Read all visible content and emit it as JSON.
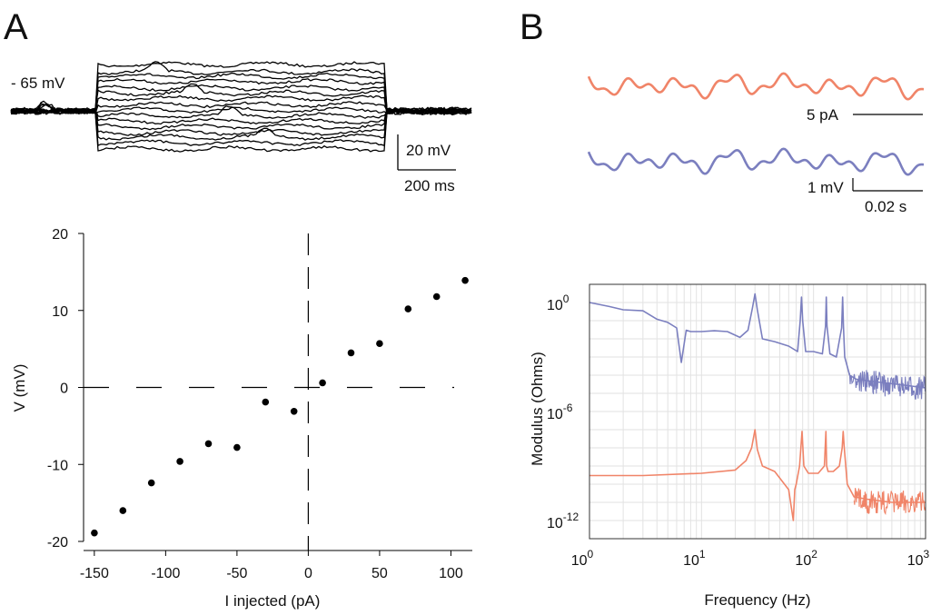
{
  "panels": {
    "a_letter": "A",
    "b_letter": "B"
  },
  "traces_a": {
    "baseline_label": "- 65 mV",
    "scale_v_label": "20 mV",
    "scale_t_label": "200 ms",
    "color": "#000000"
  },
  "traces_b": {
    "current_scale_label": "5 pA",
    "voltage_scale_label": "1 mV",
    "time_scale_label": "0.02 s",
    "current_color": "#f08468",
    "voltage_color": "#7b7fbf"
  },
  "chart_data": [
    {
      "type": "scatter",
      "title": "",
      "xlabel": "I injected (pA)",
      "ylabel": "V (mV)",
      "xlim": [
        -155,
        115
      ],
      "ylim": [
        -20,
        20
      ],
      "xticks": [
        -150,
        -100,
        -50,
        0,
        50,
        100
      ],
      "xtick_labels": [
        "-150",
        "-100",
        "-50",
        "0",
        "50",
        "100"
      ],
      "yticks": [
        -20,
        -10,
        0,
        10,
        20
      ],
      "ytick_labels": [
        "-20",
        "-10",
        "0",
        "10",
        "20"
      ],
      "grid": false,
      "points": [
        {
          "x": -150,
          "y": -18.9
        },
        {
          "x": -130,
          "y": -16.0
        },
        {
          "x": -110,
          "y": -12.4
        },
        {
          "x": -90,
          "y": -9.6
        },
        {
          "x": -70,
          "y": -7.3
        },
        {
          "x": -50,
          "y": -7.8
        },
        {
          "x": -30,
          "y": -1.9
        },
        {
          "x": -10,
          "y": -3.1
        },
        {
          "x": 10,
          "y": 0.6
        },
        {
          "x": 30,
          "y": 4.5
        },
        {
          "x": 50,
          "y": 5.7
        },
        {
          "x": 70,
          "y": 10.2
        },
        {
          "x": 90,
          "y": 11.8
        },
        {
          "x": 110,
          "y": 13.9
        }
      ],
      "reference_lines": [
        {
          "axis": "x",
          "value": 0
        },
        {
          "axis": "y",
          "value": 0
        }
      ],
      "marker_color": "#000000"
    },
    {
      "type": "line",
      "title": "",
      "xlabel": "Frequency (Hz)",
      "ylabel": "Modulus (Ohms)",
      "xscale": "log",
      "yscale": "log",
      "xlim": [
        1,
        1000
      ],
      "ylim": [
        1e-13,
        10
      ],
      "xtick_labels": [
        {
          "base": "10",
          "exp": "0"
        },
        {
          "base": "10",
          "exp": "1"
        },
        {
          "base": "10",
          "exp": "2"
        },
        {
          "base": "10",
          "exp": "3"
        }
      ],
      "ytick_labels": [
        {
          "base": "10",
          "exp": "0"
        },
        {
          "base": "10",
          "exp": "-6"
        },
        {
          "base": "10",
          "exp": "-12"
        }
      ],
      "grid": true,
      "series": [
        {
          "color": "#7b7fbf",
          "x": [
            1,
            1.5,
            2,
            3,
            4,
            5,
            6,
            6.6,
            7.3,
            8,
            10,
            13,
            17,
            22,
            26,
            28.5,
            30,
            31.5,
            35,
            45,
            60,
            72,
            76,
            78,
            80,
            85,
            100,
            120,
            128,
            130,
            132,
            140,
            160,
            178,
            182,
            185,
            190,
            210,
            240,
            300,
            400,
            600,
            1000
          ],
          "y": [
            1.0,
            0.6,
            0.4,
            0.35,
            0.12,
            0.08,
            0.04,
            0.0005,
            0.03,
            0.025,
            0.025,
            0.028,
            0.025,
            0.012,
            0.03,
            0.5,
            3,
            0.4,
            0.01,
            0.007,
            0.004,
            0.002,
            0.1,
            2,
            0.1,
            0.002,
            0.002,
            0.0015,
            0.05,
            2,
            0.05,
            0.0015,
            0.001,
            0.04,
            2,
            0.05,
            0.001,
            0.0001,
            6e-05,
            5e-05,
            4e-05,
            3e-05,
            2e-05
          ]
        },
        {
          "color": "#f08468",
          "x": [
            1,
            3,
            10,
            20,
            25,
            28,
            30,
            31.5,
            35,
            45,
            60,
            66,
            68,
            70,
            75,
            79,
            82,
            90,
            110,
            125,
            129,
            131,
            135,
            150,
            170,
            180,
            184,
            188,
            200,
            230,
            300,
            500,
            1000
          ],
          "y": [
            3e-10,
            3e-10,
            4e-10,
            6e-10,
            2e-09,
            1e-08,
            1e-07,
            8e-09,
            1e-09,
            5e-10,
            5e-11,
            1e-12,
            5e-11,
            1e-10,
            1e-09,
            8e-08,
            1e-09,
            4e-10,
            4e-10,
            1e-09,
            8e-08,
            1e-09,
            5e-10,
            5e-10,
            1e-09,
            1e-08,
            8e-08,
            1e-08,
            1e-10,
            2e-11,
            1.5e-11,
            1e-11,
            1e-11
          ]
        }
      ]
    }
  ]
}
